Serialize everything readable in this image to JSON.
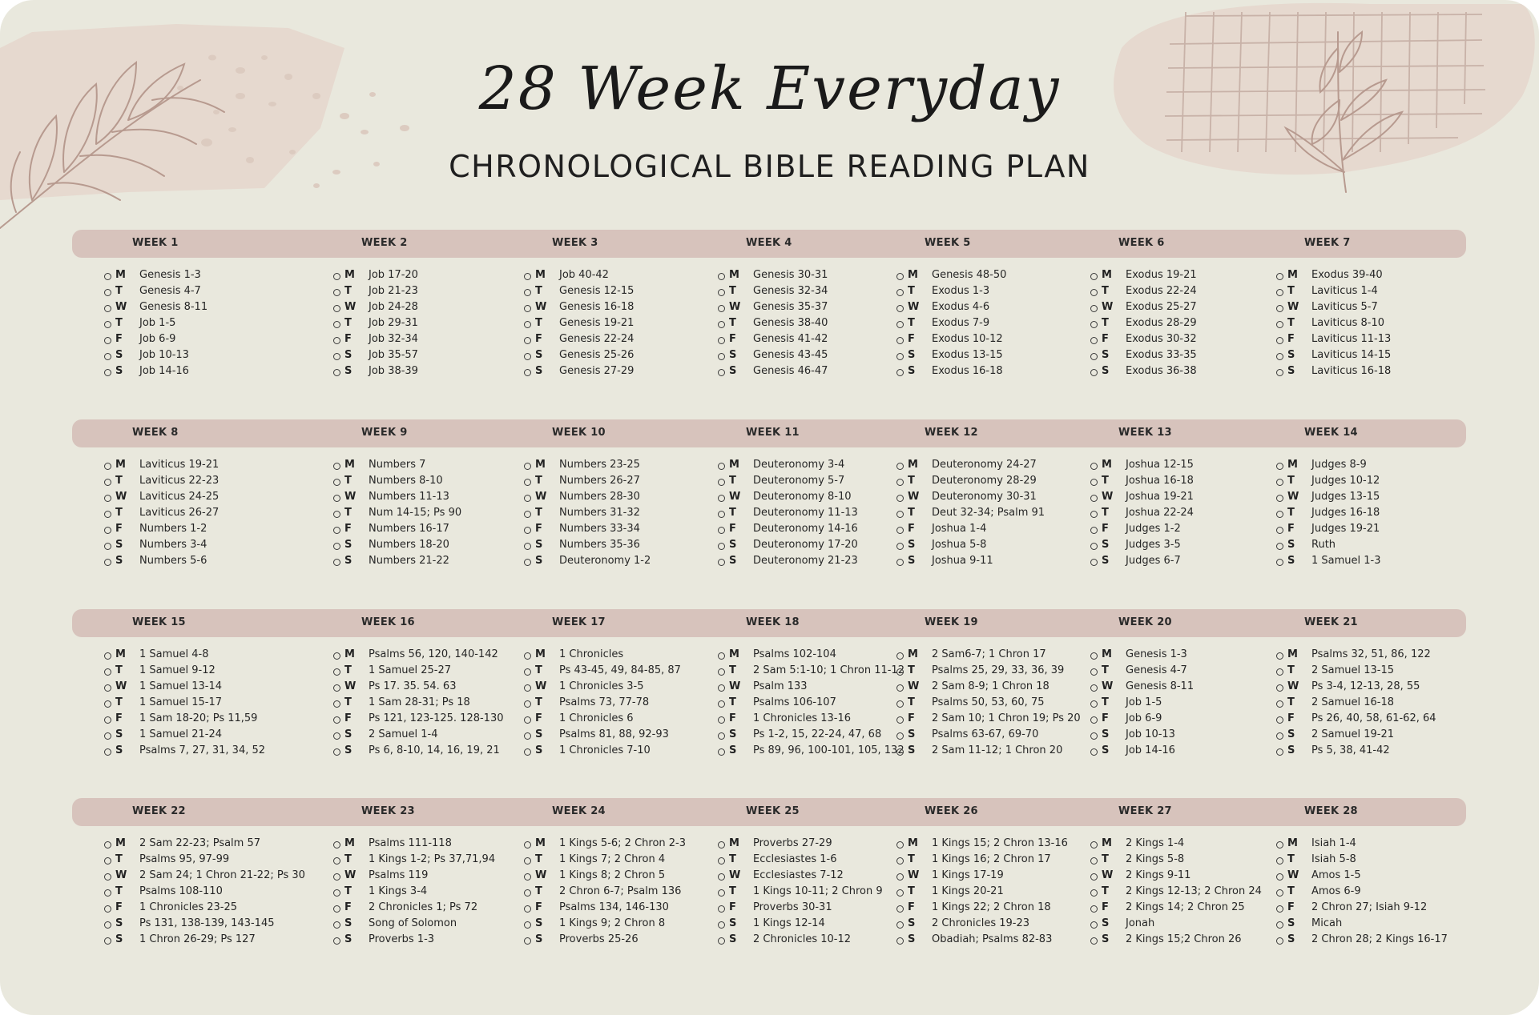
{
  "header": {
    "script_title": "28 Week Everyday",
    "subtitle": "CHRONOLOGICAL BIBLE READING PLAN"
  },
  "day_letters": [
    "M",
    "T",
    "W",
    "T",
    "F",
    "S",
    "S"
  ],
  "colors": {
    "background": "#e9e8dd",
    "week_bar": "#d7c3bc",
    "decoration": "#e6d9cf",
    "leaf_line": "#b79a8f",
    "text": "#222222"
  },
  "icons": [
    "leaf-branch-icon",
    "dot-pattern-icon",
    "grid-pattern-icon",
    "checkbox-circle-icon"
  ],
  "weeks": [
    {
      "label": "WEEK 1",
      "readings": [
        "Genesis 1-3",
        "Genesis 4-7",
        "Genesis 8-11",
        "Job 1-5",
        "Job 6-9",
        "Job 10-13",
        "Job 14-16"
      ]
    },
    {
      "label": "WEEK 2",
      "readings": [
        "Job 17-20",
        "Job 21-23",
        "Job 24-28",
        "Job 29-31",
        "Job 32-34",
        "Job 35-57",
        "Job 38-39"
      ]
    },
    {
      "label": "WEEK 3",
      "readings": [
        "Job 40-42",
        "Genesis 12-15",
        "Genesis 16-18",
        "Genesis 19-21",
        "Genesis 22-24",
        "Genesis 25-26",
        "Genesis 27-29"
      ]
    },
    {
      "label": "WEEK 4",
      "readings": [
        "Genesis 30-31",
        "Genesis 32-34",
        "Genesis 35-37",
        "Genesis 38-40",
        "Genesis 41-42",
        "Genesis 43-45",
        "Genesis 46-47"
      ]
    },
    {
      "label": "WEEK 5",
      "readings": [
        "Genesis 48-50",
        "Exodus 1-3",
        "Exodus 4-6",
        "Exodus 7-9",
        "Exodus 10-12",
        "Exodus 13-15",
        "Exodus 16-18"
      ]
    },
    {
      "label": "WEEK 6",
      "readings": [
        "Exodus 19-21",
        "Exodus 22-24",
        "Exodus 25-27",
        "Exodus 28-29",
        "Exodus 30-32",
        "Exodus 33-35",
        "Exodus 36-38"
      ]
    },
    {
      "label": "WEEK 7",
      "readings": [
        "Exodus 39-40",
        "Laviticus 1-4",
        "Laviticus 5-7",
        "Laviticus 8-10",
        "Laviticus 11-13",
        "Laviticus 14-15",
        "Laviticus 16-18"
      ]
    },
    {
      "label": "WEEK 8",
      "readings": [
        "Laviticus 19-21",
        "Laviticus 22-23",
        "Laviticus 24-25",
        "Laviticus 26-27",
        "Numbers 1-2",
        "Numbers 3-4",
        "Numbers 5-6"
      ]
    },
    {
      "label": "WEEK 9",
      "readings": [
        "Numbers 7",
        "Numbers 8-10",
        "Numbers 11-13",
        "Num 14-15; Ps 90",
        "Numbers 16-17",
        "Numbers 18-20",
        "Numbers 21-22"
      ]
    },
    {
      "label": "WEEK 10",
      "readings": [
        "Numbers 23-25",
        "Numbers 26-27",
        "Numbers  28-30",
        "Numbers  31-32",
        "Numbers 33-34",
        "Numbers  35-36",
        "Deuteronomy 1-2"
      ]
    },
    {
      "label": "WEEK 11",
      "readings": [
        "Deuteronomy 3-4",
        "Deuteronomy 5-7",
        "Deuteronomy 8-10",
        "Deuteronomy 11-13",
        "Deuteronomy 14-16",
        "Deuteronomy 17-20",
        "Deuteronomy 21-23"
      ]
    },
    {
      "label": "WEEK 12",
      "readings": [
        "Deuteronomy 24-27",
        "Deuteronomy 28-29",
        "Deuteronomy 30-31",
        "Deut 32-34; Psalm 91",
        "Joshua 1-4",
        "Joshua 5-8",
        "Joshua 9-11"
      ]
    },
    {
      "label": "WEEK 13",
      "readings": [
        "Joshua 12-15",
        "Joshua 16-18",
        "Joshua 19-21",
        "Joshua 22-24",
        "Judges 1-2",
        "Judges 3-5",
        "Judges 6-7"
      ]
    },
    {
      "label": "WEEK 14",
      "readings": [
        "Judges 8-9",
        "Judges 10-12",
        "Judges 13-15",
        "Judges 16-18",
        "Judges 19-21",
        "Ruth",
        "1 Samuel 1-3"
      ]
    },
    {
      "label": "WEEK 15",
      "readings": [
        "1 Samuel 4-8",
        "1 Samuel 9-12",
        "1 Samuel 13-14",
        "1 Samuel 15-17",
        "1 Sam 18-20; Ps 11,59",
        "1 Samuel 21-24",
        "Psalms 7, 27, 31, 34, 52"
      ]
    },
    {
      "label": "WEEK 16",
      "readings": [
        "Psalms 56, 120, 140-142",
        "1 Samuel 25-27",
        "Ps 17. 35. 54. 63",
        "1 Sam 28-31; Ps 18",
        "Ps 121, 123-125. 128-130",
        "2 Samuel 1-4",
        "Ps 6, 8-10, 14, 16, 19, 21"
      ]
    },
    {
      "label": "WEEK 17",
      "readings": [
        "1 Chronicles",
        "Ps 43-45, 49, 84-85, 87",
        "1 Chronicles 3-5",
        "Psalms 73, 77-78",
        "1 Chronicles 6",
        "Psalms 81, 88, 92-93",
        "1 Chronicles 7-10"
      ]
    },
    {
      "label": "WEEK 18",
      "readings": [
        "Psalms 102-104",
        "2 Sam 5:1-10; 1 Chron 11-12",
        "Psalm 133",
        "Psalms 106-107",
        "1 Chronicles 13-16",
        "Ps 1-2, 15, 22-24, 47, 68",
        "Ps 89, 96, 100-101, 105, 132"
      ]
    },
    {
      "label": "WEEK 19",
      "readings": [
        "2 Sam6-7; 1 Chron 17",
        "Psalms 25, 29, 33, 36, 39",
        "2 Sam 8-9; 1 Chron 18",
        "Psalms 50, 53, 60, 75",
        "2 Sam 10; 1 Chron 19; Ps 20",
        "Psalms 63-67, 69-70",
        "2 Sam 11-12; 1 Chron 20"
      ]
    },
    {
      "label": "WEEK 20",
      "readings": [
        "Genesis 1-3",
        "Genesis 4-7",
        "Genesis 8-11",
        "Job 1-5",
        "Job 6-9",
        "Job 10-13",
        "Job 14-16"
      ]
    },
    {
      "label": "WEEK 21",
      "readings": [
        "Psalms 32, 51, 86, 122",
        "2 Samuel 13-15",
        "Ps 3-4, 12-13, 28, 55",
        "2 Samuel 16-18",
        "Ps 26, 40, 58, 61-62, 64",
        "2 Samuel 19-21",
        "Ps 5, 38, 41-42"
      ]
    },
    {
      "label": "WEEK 22",
      "readings": [
        "2 Sam 22-23; Psalm 57",
        "Psalms 95, 97-99",
        "2 Sam 24; 1 Chron 21-22; Ps 30",
        "Psalms 108-110",
        "1 Chronicles 23-25",
        "Ps 131, 138-139, 143-145",
        "1 Chron 26-29; Ps 127"
      ]
    },
    {
      "label": "WEEK 23",
      "readings": [
        "Psalms 111-118",
        "1 Kings 1-2; Ps 37,71,94",
        "Psalms 119",
        "1 Kings 3-4",
        "2 Chronicles 1; Ps 72",
        "Song of Solomon",
        "Proverbs 1-3"
      ]
    },
    {
      "label": "WEEK 24",
      "readings": [
        "1 Kings 5-6; 2 Chron 2-3",
        "1 Kings 7; 2 Chron 4",
        "1 Kings 8; 2 Chron 5",
        "2 Chron 6-7; Psalm 136",
        "Psalms 134, 146-130",
        "1 Kings 9; 2 Chron 8",
        "Proverbs 25-26"
      ]
    },
    {
      "label": "WEEK 25",
      "readings": [
        "Proverbs 27-29",
        "Ecclesiastes 1-6",
        "Ecclesiastes 7-12",
        "1 Kings 10-11; 2 Chron 9",
        "Proverbs 30-31",
        "1 Kings 12-14",
        "2 Chronicles 10-12"
      ]
    },
    {
      "label": "WEEK 26",
      "readings": [
        "1 Kings 15; 2 Chron 13-16",
        "1 Kings 16; 2 Chron 17",
        "1 Kings 17-19",
        "1 Kings 20-21",
        "1 Kings 22; 2 Chron 18",
        "2 Chronicles 19-23",
        "Obadiah; Psalms 82-83"
      ]
    },
    {
      "label": "WEEK 27",
      "readings": [
        "2 Kings 1-4",
        "2 Kings 5-8",
        "2 Kings 9-11",
        "2 Kings 12-13; 2 Chron 24",
        "2 Kings 14; 2 Chron 25",
        "Jonah",
        "2 Kings 15;2 Chron 26"
      ]
    },
    {
      "label": "WEEK 28",
      "readings": [
        "Isiah 1-4",
        "Isiah 5-8",
        "Amos 1-5",
        "Amos 6-9",
        "2 Chron 27; Isiah 9-12",
        "Micah",
        "2 Chron 28; 2 Kings 16-17"
      ]
    }
  ]
}
